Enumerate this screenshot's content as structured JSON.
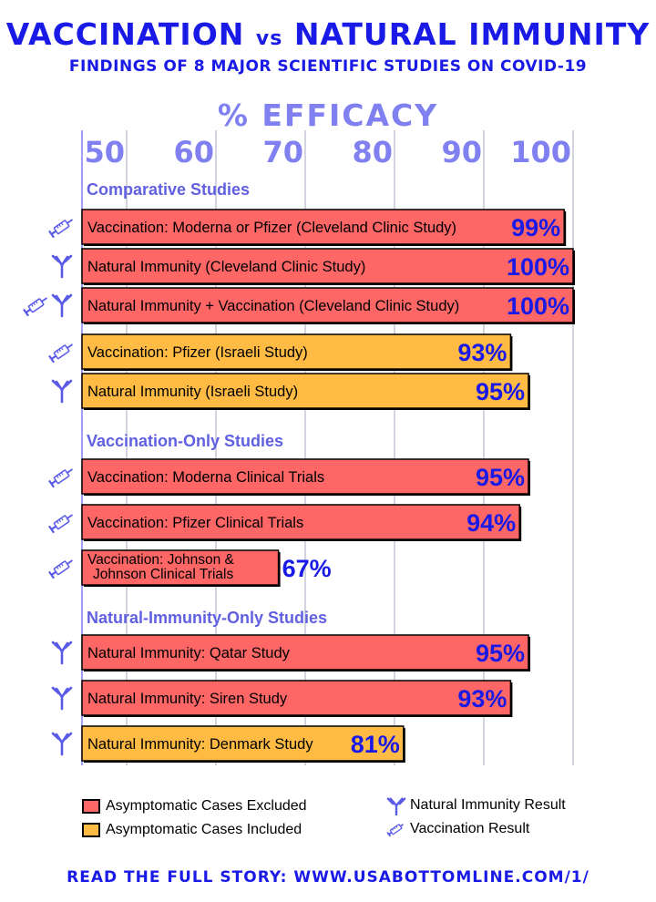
{
  "header": {
    "title_left": "VACCINATION",
    "title_vs": "vs",
    "title_right": "NATURAL IMMUNITY",
    "subtitle": "FINDINGS OF 8 MAJOR SCIENTIFIC STUDIES ON COVID-19"
  },
  "footer": {
    "text": "READ THE FULL STORY:  WWW.USABOTTOMLINE.COM/1/"
  },
  "colors": {
    "excluded": "#ff6666",
    "included": "#ffbb44",
    "accent": "#1a1ae6",
    "axis": "#8080f0",
    "section": "#6060e0"
  },
  "legend": {
    "excluded_label": "Asymptomatic Cases Excluded",
    "included_label": "Asymptomatic Cases Included",
    "natural_label": "Natural Immunity Result",
    "vaccine_label": "Vaccination Result"
  },
  "chart_data": {
    "type": "bar",
    "orientation": "horizontal",
    "xlabel": "% EFFICACY",
    "xlim": [
      45,
      100
    ],
    "xticks": [
      50,
      60,
      70,
      80,
      90,
      100
    ],
    "grid": true,
    "legend_position": "bottom",
    "sections": [
      {
        "title": "Comparative Studies",
        "bars": [
          {
            "label": "Vaccination: Moderna or Pfizer (Cleveland Clinic Study)",
            "value": 99,
            "value_label": "99%",
            "cases": "excluded",
            "icons": [
              "vaccine-icon"
            ]
          },
          {
            "label": "Natural Immunity (Cleveland Clinic Study)",
            "value": 100,
            "value_label": "100%",
            "cases": "excluded",
            "icons": [
              "antibody-icon"
            ]
          },
          {
            "label": "Natural Immunity + Vaccination (Cleveland Clinic Study)",
            "value": 100,
            "value_label": "100%",
            "cases": "excluded",
            "icons": [
              "vaccine-icon",
              "antibody-icon"
            ]
          },
          {
            "label": "Vaccination: Pfizer (Israeli Study)",
            "value": 93,
            "value_label": "93%",
            "cases": "included",
            "icons": [
              "vaccine-icon"
            ]
          },
          {
            "label": "Natural Immunity (Israeli Study)",
            "value": 95,
            "value_label": "95%",
            "cases": "included",
            "icons": [
              "antibody-icon"
            ]
          }
        ]
      },
      {
        "title": "Vaccination-Only Studies",
        "bars": [
          {
            "label": "Vaccination: Moderna Clinical Trials",
            "value": 95,
            "value_label": "95%",
            "cases": "excluded",
            "icons": [
              "vaccine-icon"
            ]
          },
          {
            "label": "Vaccination: Pfizer Clinical Trials",
            "value": 94,
            "value_label": "94%",
            "cases": "excluded",
            "icons": [
              "vaccine-icon"
            ]
          },
          {
            "label": "Vaccination: Johnson &\nJohnson Clinical Trials",
            "value": 67,
            "value_label": "67%",
            "cases": "excluded",
            "icons": [
              "vaccine-icon"
            ]
          }
        ]
      },
      {
        "title": "Natural-Immunity-Only Studies",
        "bars": [
          {
            "label": "Natural Immunity: Qatar Study",
            "value": 95,
            "value_label": "95%",
            "cases": "excluded",
            "icons": [
              "antibody-icon"
            ]
          },
          {
            "label": "Natural Immunity: Siren Study",
            "value": 93,
            "value_label": "93%",
            "cases": "excluded",
            "icons": [
              "antibody-icon"
            ]
          },
          {
            "label": "Natural Immunity: Denmark Study",
            "value": 81,
            "value_label": "81%",
            "cases": "included",
            "icons": [
              "antibody-icon"
            ]
          }
        ]
      }
    ]
  }
}
